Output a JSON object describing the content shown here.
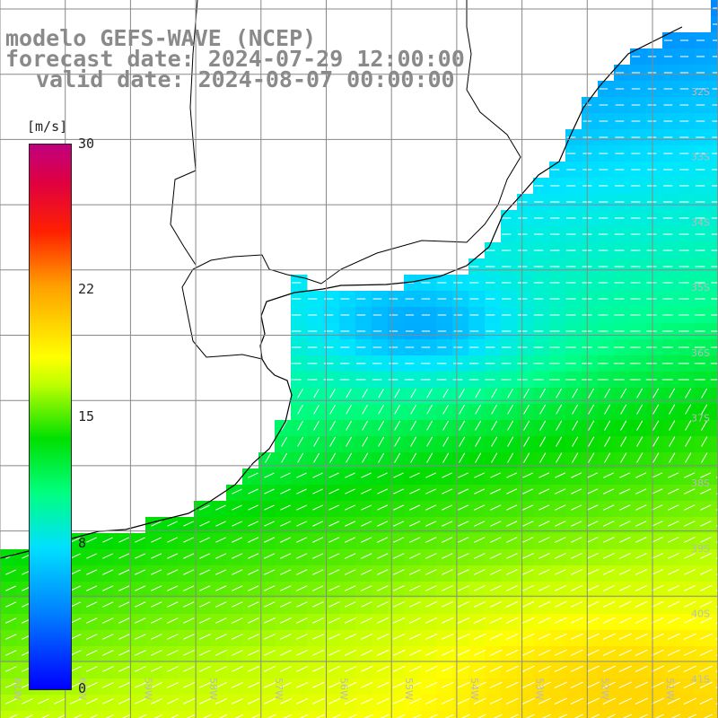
{
  "title": {
    "line1": "modelo GEFS-WAVE (NCEP)",
    "line2": "forecast date: 2024-07-29 12:00:00",
    "line3": "valid date: 2024-08-07 00:00:00"
  },
  "colorbar": {
    "unit": "[m/s]",
    "ticks": [
      {
        "label": "30",
        "value": 30
      },
      {
        "label": "22",
        "value": 22
      },
      {
        "label": "15",
        "value": 15
      },
      {
        "label": "8",
        "value": 8
      },
      {
        "label": "0",
        "value": 0
      }
    ]
  },
  "map": {
    "lat_labels": [
      "32S",
      "33S",
      "34S",
      "35S",
      "36S",
      "37S",
      "38S",
      "39S",
      "40S",
      "41S"
    ],
    "lon_labels": [
      "61W",
      "60W",
      "59W",
      "58W",
      "57W",
      "56W",
      "55W",
      "54W",
      "53W",
      "52W",
      "51W"
    ],
    "grid_color": "#888888",
    "coast_color": "#000000",
    "land_color": "#ffffff"
  }
}
